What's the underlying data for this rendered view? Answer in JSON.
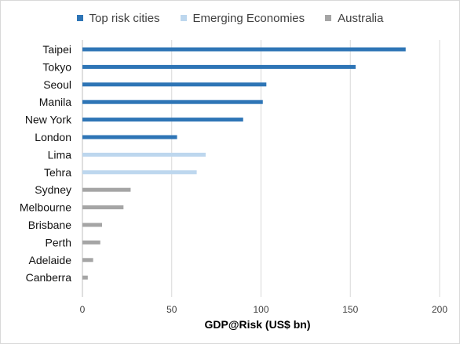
{
  "chart_data": {
    "type": "bar",
    "orientation": "horizontal",
    "categories": [
      "Taipei",
      "Tokyo",
      "Seoul",
      "Manila",
      "New York",
      "London",
      "Lima",
      "Tehra",
      "Sydney",
      "Melbourne",
      "Brisbane",
      "Perth",
      "Adelaide",
      "Canberra"
    ],
    "series": [
      {
        "name": "Top risk cities",
        "color": "#2e75b6",
        "values": [
          181,
          153,
          103,
          101,
          90,
          53,
          null,
          null,
          null,
          null,
          null,
          null,
          null,
          null
        ]
      },
      {
        "name": "Emerging Economies",
        "color": "#bdd7ee",
        "values": [
          null,
          null,
          null,
          null,
          null,
          null,
          69,
          64,
          null,
          null,
          null,
          null,
          null,
          null
        ]
      },
      {
        "name": "Australia",
        "color": "#a5a5a5",
        "values": [
          null,
          null,
          null,
          null,
          null,
          null,
          null,
          null,
          27,
          23,
          11,
          10,
          6,
          3
        ]
      }
    ],
    "title": "",
    "xlabel": "GDP@Risk (US$ bn)",
    "ylabel": "",
    "xlim": [
      0,
      200
    ],
    "xticks": [
      0,
      50,
      100,
      150,
      200
    ],
    "xtick_labels": [
      "0",
      "50",
      "100",
      "150",
      "200"
    ],
    "legend_position": "top-center",
    "grid": "vertical",
    "grid_color": "#d9d9d9",
    "axis_color": "#bfbfbf"
  }
}
